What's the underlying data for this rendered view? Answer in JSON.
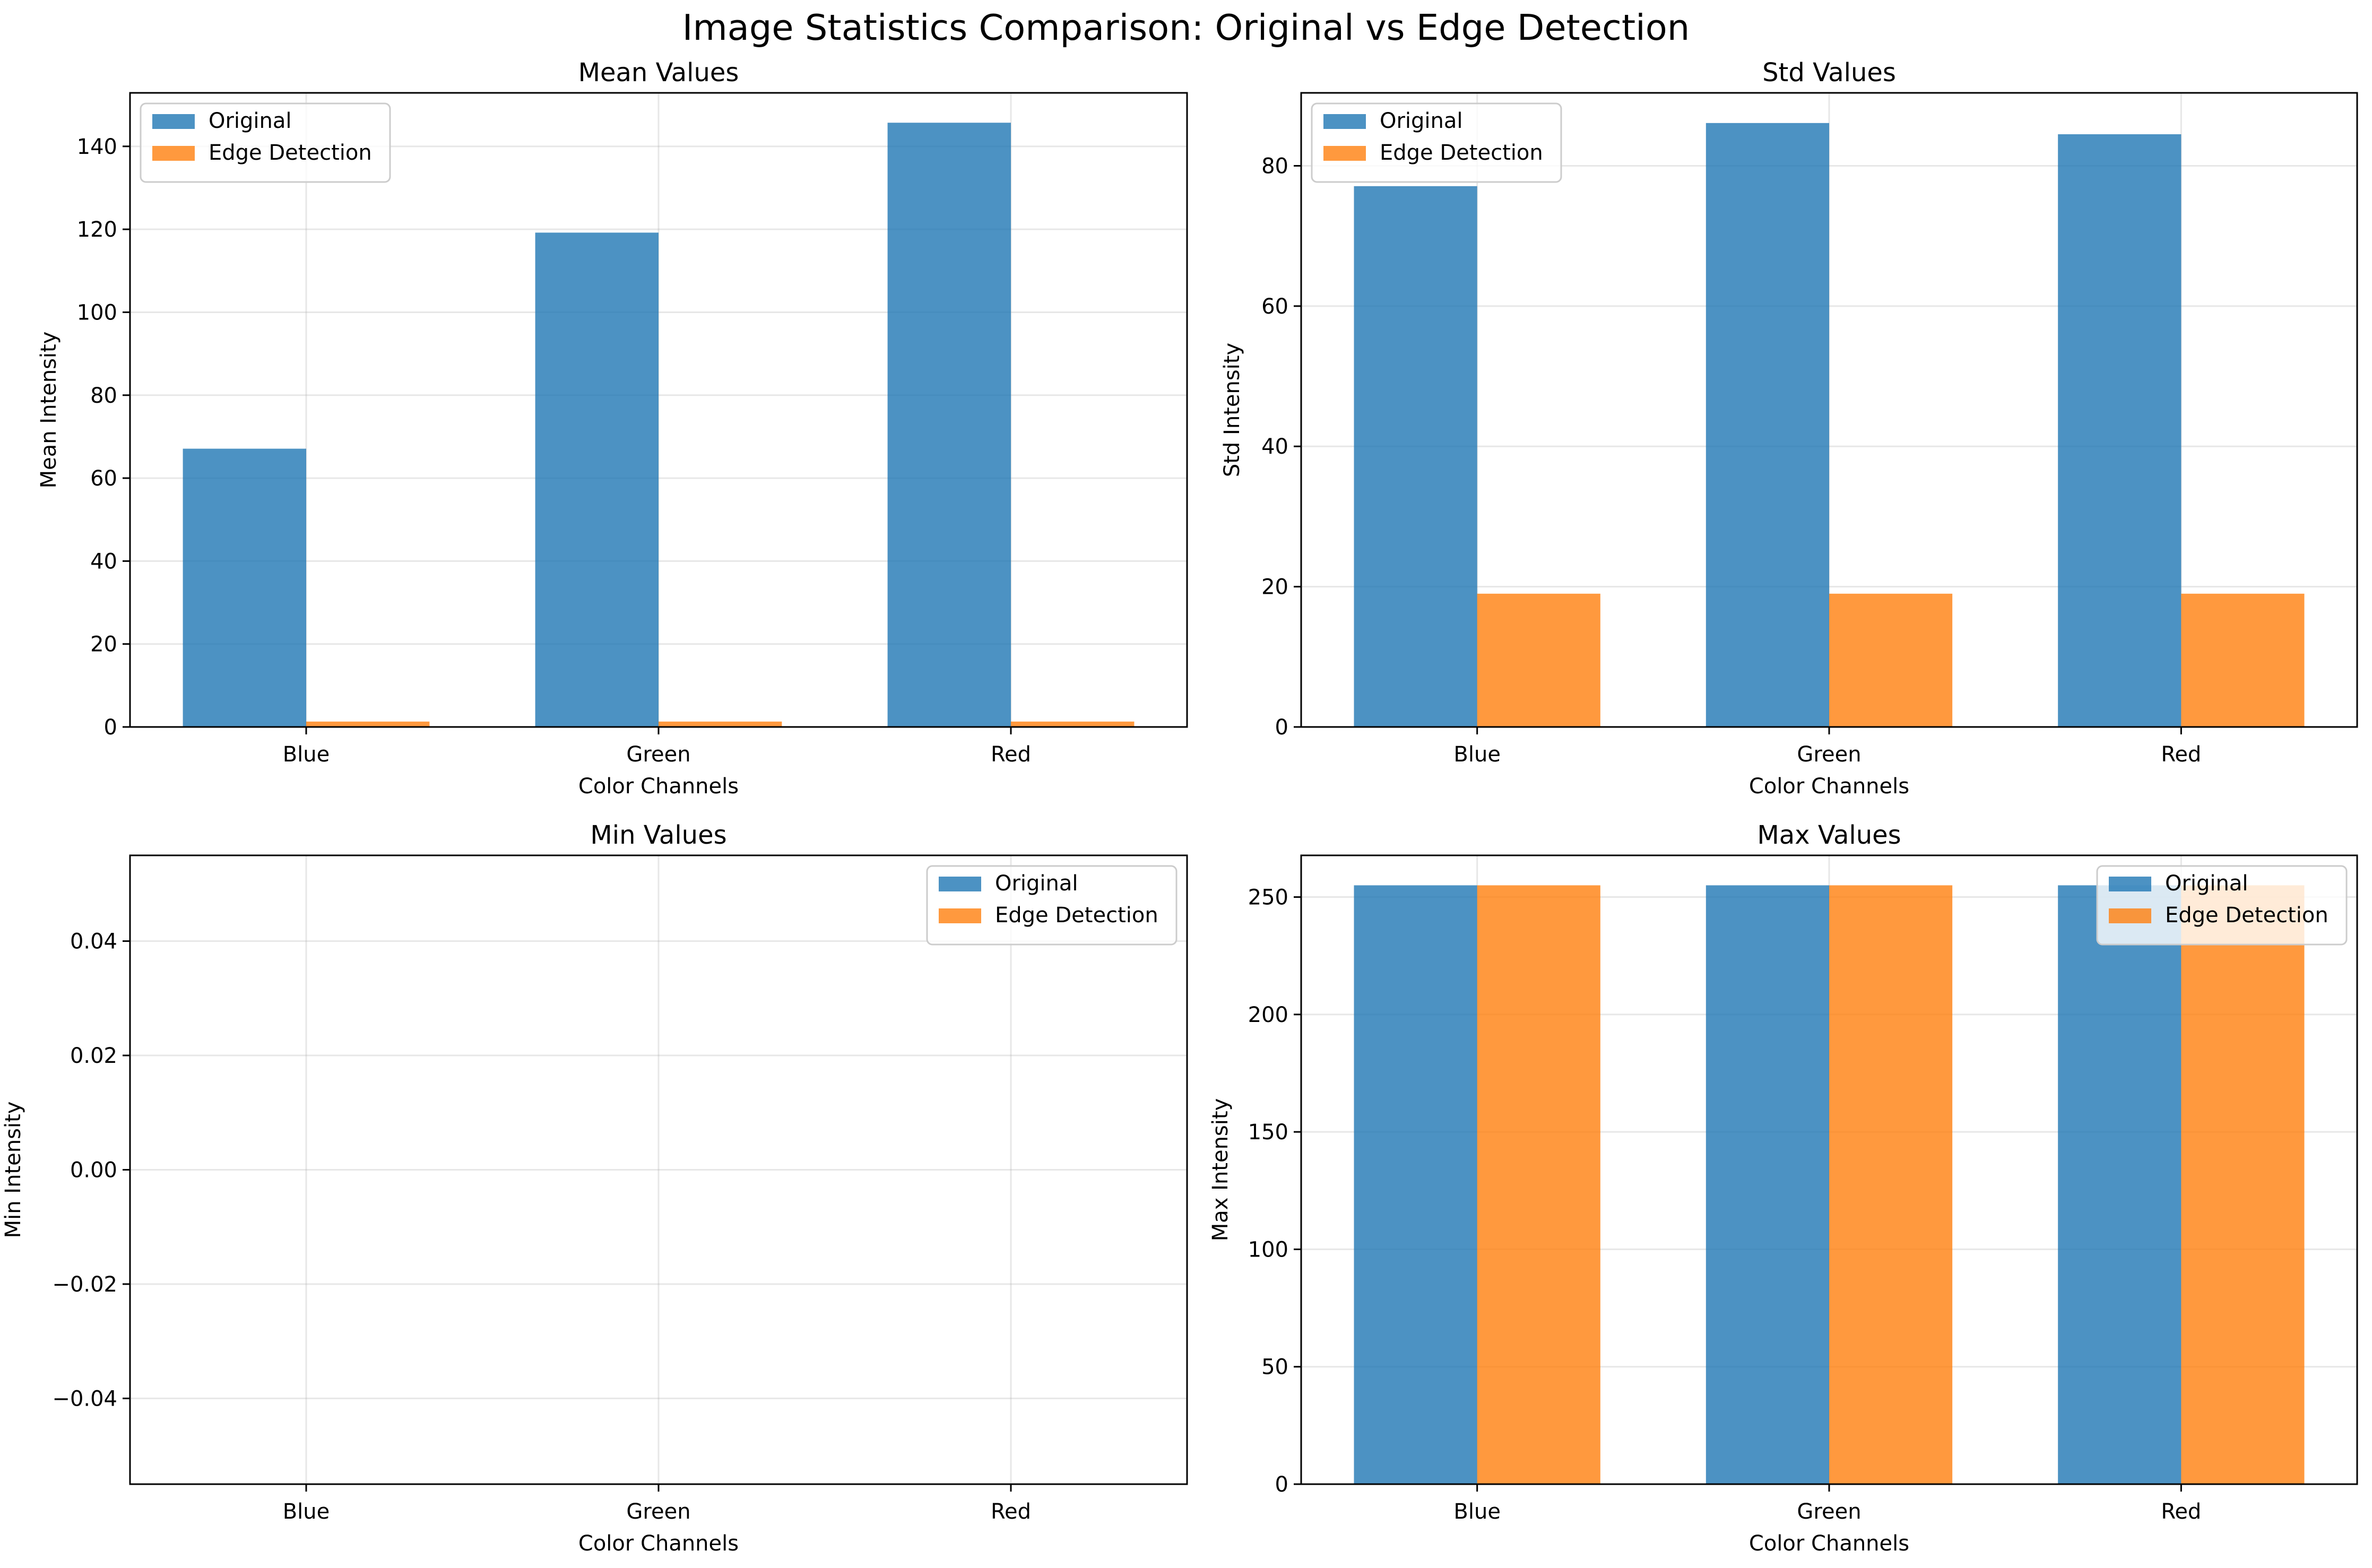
{
  "figure": {
    "title": "Image Statistics Comparison: Original vs Edge Detection"
  },
  "colors": {
    "original": "#1f77b4",
    "edge": "#ff7f0e",
    "bar_alpha": 0.8,
    "grid": "#b0b0b0"
  },
  "chart_data": [
    {
      "type": "bar",
      "title": "Mean Values",
      "xlabel": "Color Channels",
      "ylabel": "Mean Intensity",
      "categories": [
        "Blue",
        "Green",
        "Red"
      ],
      "series": [
        {
          "name": "Original",
          "values": [
            67.1,
            119.2,
            145.7
          ]
        },
        {
          "name": "Edge Detection",
          "values": [
            1.3,
            1.3,
            1.3
          ]
        }
      ],
      "ylim": [
        0,
        152.9
      ],
      "yticks": [
        0,
        20,
        40,
        60,
        80,
        100,
        120,
        140
      ],
      "ytick_labels": [
        "0",
        "20",
        "40",
        "60",
        "80",
        "100",
        "120",
        "140"
      ],
      "legend": "upper-left",
      "grid": true
    },
    {
      "type": "bar",
      "title": "Std Values",
      "xlabel": "Color Channels",
      "ylabel": "Std Intensity",
      "categories": [
        "Blue",
        "Green",
        "Red"
      ],
      "series": [
        {
          "name": "Original",
          "values": [
            77.1,
            86.1,
            84.5
          ]
        },
        {
          "name": "Edge Detection",
          "values": [
            19.0,
            19.0,
            19.0
          ]
        }
      ],
      "ylim": [
        0,
        90.4
      ],
      "yticks": [
        0,
        20,
        40,
        60,
        80
      ],
      "ytick_labels": [
        "0",
        "20",
        "40",
        "60",
        "80"
      ],
      "legend": "upper-left",
      "grid": true
    },
    {
      "type": "bar",
      "title": "Min Values",
      "xlabel": "Color Channels",
      "ylabel": "Min Intensity",
      "categories": [
        "Blue",
        "Green",
        "Red"
      ],
      "series": [
        {
          "name": "Original",
          "values": [
            0,
            0,
            0
          ]
        },
        {
          "name": "Edge Detection",
          "values": [
            0,
            0,
            0
          ]
        }
      ],
      "ylim": [
        -0.055,
        0.055
      ],
      "yticks": [
        -0.04,
        -0.02,
        0.0,
        0.02,
        0.04
      ],
      "ytick_labels": [
        "−0.04",
        "−0.02",
        "0.00",
        "0.02",
        "0.04"
      ],
      "legend": "upper-right",
      "grid": true
    },
    {
      "type": "bar",
      "title": "Max Values",
      "xlabel": "Color Channels",
      "ylabel": "Max Intensity",
      "categories": [
        "Blue",
        "Green",
        "Red"
      ],
      "series": [
        {
          "name": "Original",
          "values": [
            255,
            255,
            255
          ]
        },
        {
          "name": "Edge Detection",
          "values": [
            255,
            255,
            255
          ]
        }
      ],
      "ylim": [
        0,
        267.75
      ],
      "yticks": [
        0,
        50,
        100,
        150,
        200,
        250
      ],
      "ytick_labels": [
        "0",
        "50",
        "100",
        "150",
        "200",
        "250"
      ],
      "legend": "upper-right",
      "grid": true
    }
  ]
}
